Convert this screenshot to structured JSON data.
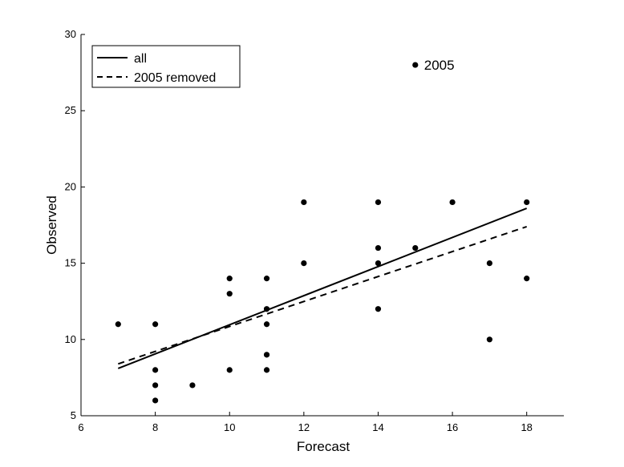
{
  "chart_data": {
    "type": "scatter",
    "title": "",
    "xlabel": "Forecast",
    "ylabel": "Observed",
    "xlim": [
      6,
      19
    ],
    "ylim": [
      5,
      30
    ],
    "xticks": [
      6,
      8,
      10,
      12,
      14,
      16,
      18
    ],
    "yticks": [
      5,
      10,
      15,
      20,
      25,
      30
    ],
    "grid": false,
    "legend_placement": "top-left",
    "points": [
      {
        "x": 7,
        "y": 11
      },
      {
        "x": 8,
        "y": 11
      },
      {
        "x": 8,
        "y": 8
      },
      {
        "x": 8,
        "y": 7
      },
      {
        "x": 8,
        "y": 6
      },
      {
        "x": 9,
        "y": 7
      },
      {
        "x": 10,
        "y": 14
      },
      {
        "x": 10,
        "y": 13
      },
      {
        "x": 10,
        "y": 8
      },
      {
        "x": 11,
        "y": 14
      },
      {
        "x": 11,
        "y": 12
      },
      {
        "x": 11,
        "y": 11
      },
      {
        "x": 11,
        "y": 9
      },
      {
        "x": 11,
        "y": 8
      },
      {
        "x": 12,
        "y": 19
      },
      {
        "x": 12,
        "y": 15
      },
      {
        "x": 14,
        "y": 19
      },
      {
        "x": 14,
        "y": 16
      },
      {
        "x": 14,
        "y": 15
      },
      {
        "x": 14,
        "y": 12
      },
      {
        "x": 15,
        "y": 28
      },
      {
        "x": 15,
        "y": 16
      },
      {
        "x": 16,
        "y": 19
      },
      {
        "x": 17,
        "y": 15
      },
      {
        "x": 17,
        "y": 10
      },
      {
        "x": 18,
        "y": 19
      },
      {
        "x": 18,
        "y": 14
      }
    ],
    "lines": [
      {
        "name": "all",
        "style": "solid",
        "x": [
          7,
          18
        ],
        "y": [
          8.1,
          18.6
        ]
      },
      {
        "name": "2005 removed",
        "style": "dashed",
        "x": [
          7,
          18
        ],
        "y": [
          8.4,
          17.4
        ]
      }
    ],
    "annotations": [
      {
        "text": "2005",
        "x": 15,
        "y": 28
      }
    ],
    "colors": {
      "axis": "#000000",
      "marker": "#000000",
      "line": "#000000",
      "background": "#ffffff"
    }
  }
}
